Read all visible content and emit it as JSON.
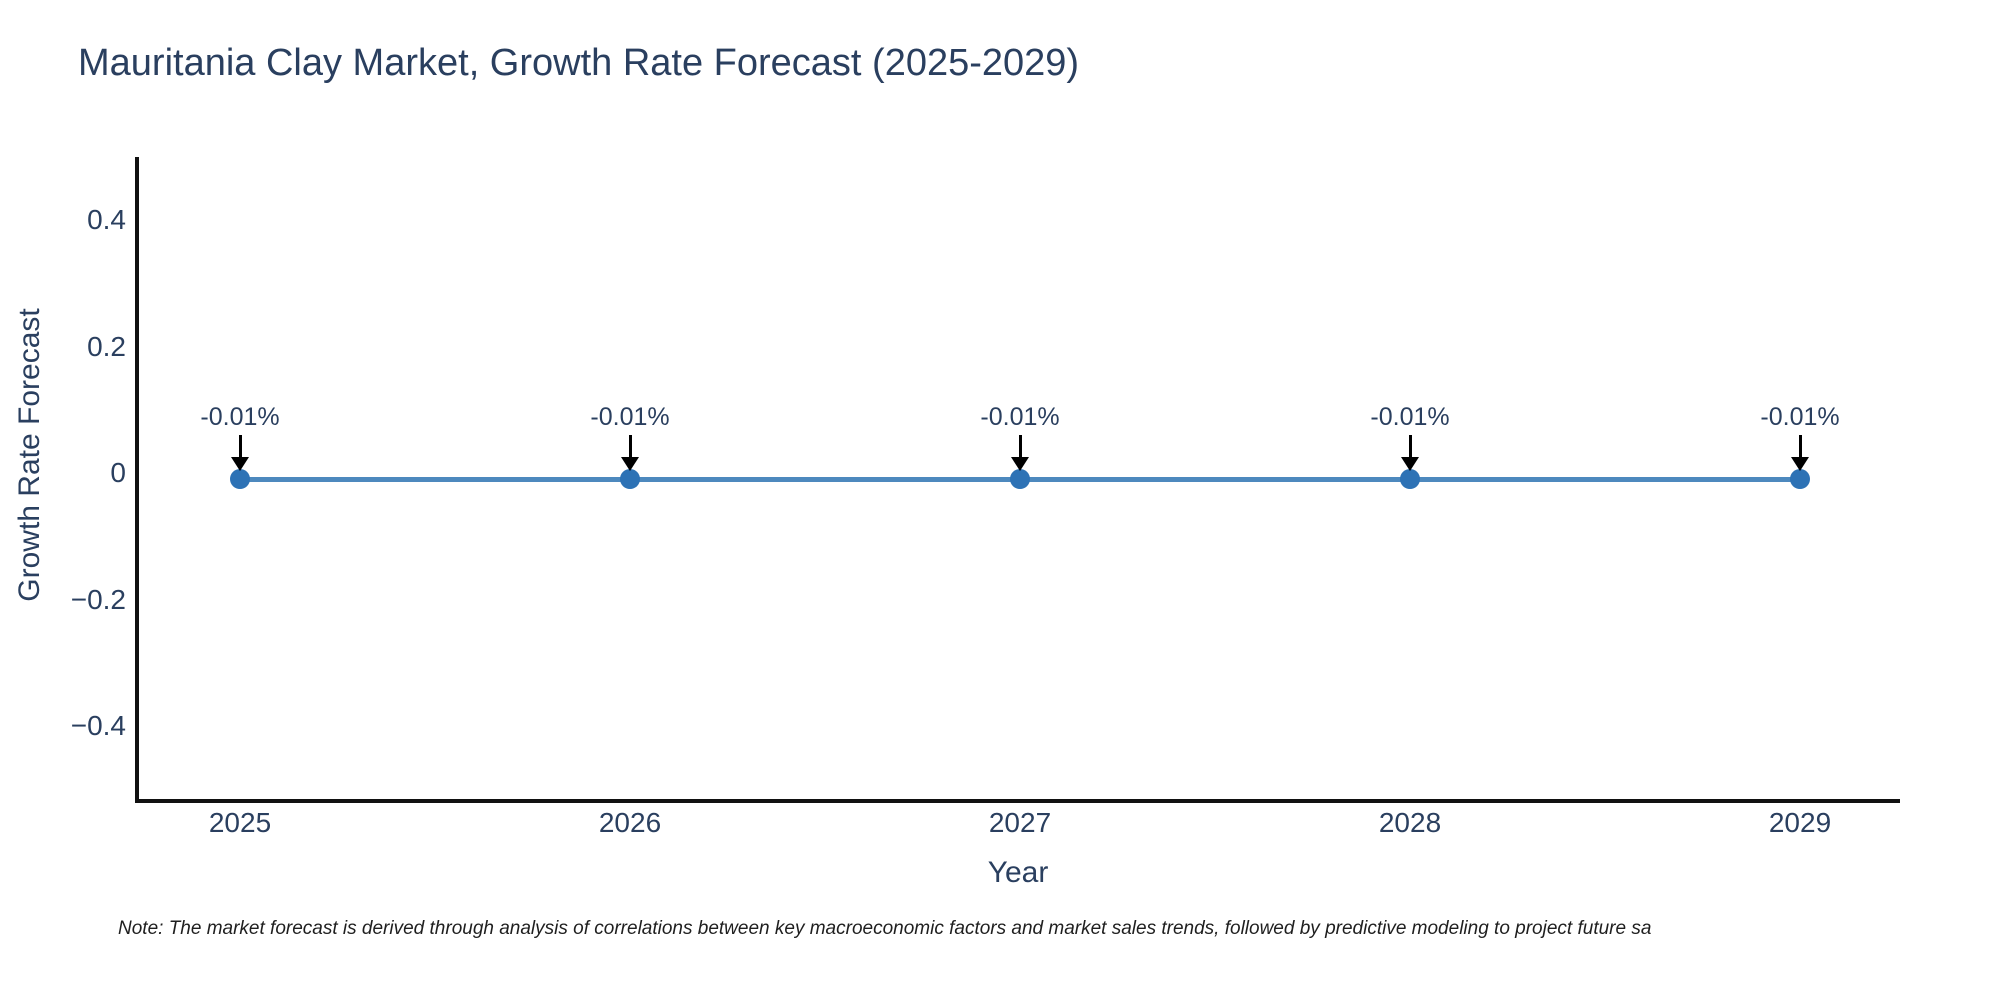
{
  "title": "Mauritania Clay Market, Growth Rate Forecast (2025-2029)",
  "footnote": "Note: The market forecast is derived through analysis of correlations between key macroeconomic factors and market sales trends, followed by predictive modeling to project future sa",
  "chart_data": {
    "type": "line",
    "title": "Mauritania Clay Market, Growth Rate Forecast (2025-2029)",
    "xlabel": "Year",
    "ylabel": "Growth Rate Forecast",
    "x": [
      2025,
      2026,
      2027,
      2028,
      2029
    ],
    "series": [
      {
        "name": "Growth Rate Forecast",
        "values": [
          -0.01,
          -0.01,
          -0.01,
          -0.01,
          -0.01
        ]
      }
    ],
    "point_labels": [
      "-0.01%",
      "-0.01%",
      "-0.01%",
      "-0.01%",
      "-0.01%"
    ],
    "x_ticks": [
      "2025",
      "2026",
      "2027",
      "2028",
      "2029"
    ],
    "y_ticks": [
      "0.4",
      "0.2",
      "0",
      "−0.2",
      "−0.4"
    ],
    "y_tick_values": [
      0.4,
      0.2,
      0,
      -0.2,
      -0.4
    ],
    "xlim": [
      2024.74,
      2029.26
    ],
    "ylim": [
      -0.52,
      0.5
    ],
    "grid": false,
    "legend": "none",
    "marker_style": "circle",
    "annotation_arrows": "black-down-arrows",
    "colors": {
      "line": "#4d89be",
      "marker": "#2d72b5",
      "arrow": "#000000",
      "text": "#2a3f5f",
      "note_text": "#1f1f1f",
      "axis": "#111111",
      "background": "#ffffff"
    }
  }
}
